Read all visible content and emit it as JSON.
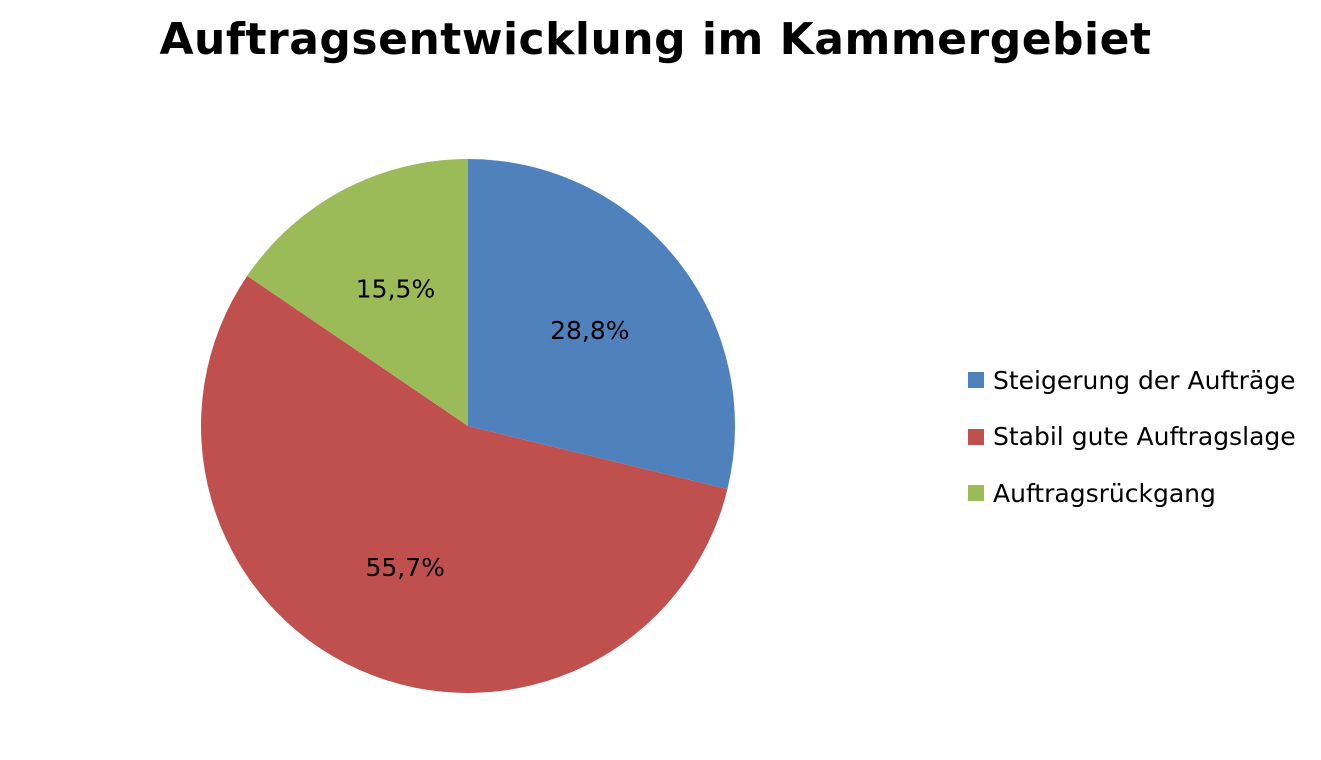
{
  "chart_data": {
    "type": "pie",
    "title": "Auftragsentwicklung im Kammergebiet",
    "categories": [
      "Steigerung der Aufträge",
      "Stabil gute Auftragslage",
      "Auftragsrückgang"
    ],
    "values": [
      28.8,
      55.7,
      15.5
    ],
    "value_labels": [
      "28,8%",
      "55,7%",
      "15,5%"
    ],
    "colors": [
      "#4F81BD",
      "#C0504D",
      "#9BBB59"
    ],
    "start_angle_deg": 0,
    "direction": "clockwise",
    "legend_position": "right"
  }
}
